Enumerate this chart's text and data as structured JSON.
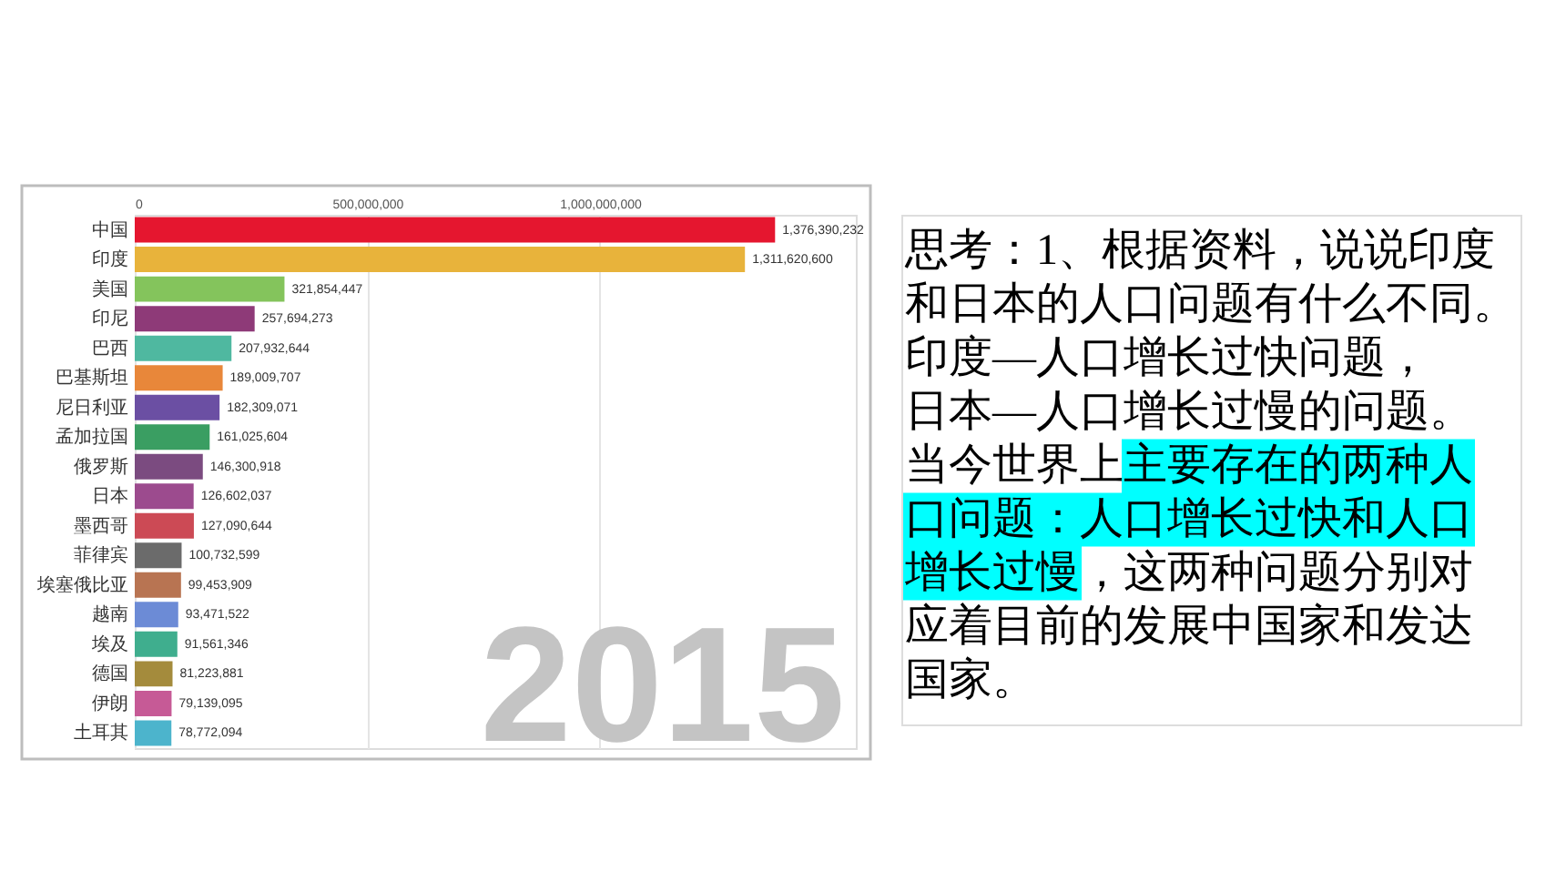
{
  "chart_data": [
    {
      "type": "bar",
      "orientation": "horizontal",
      "categories": [
        "中国",
        "印度",
        "美国",
        "印尼",
        "巴西",
        "巴基斯坦",
        "尼日利亚",
        "孟加拉国",
        "俄罗斯",
        "日本",
        "墨西哥",
        "菲律宾",
        "埃塞俄比亚",
        "越南",
        "埃及",
        "德国",
        "伊朗",
        "土耳其"
      ],
      "values": [
        1376390232,
        1311620600,
        321854447,
        257694273,
        207932644,
        189009707,
        182309071,
        161025604,
        146300918,
        126602037,
        127090644,
        100732599,
        99453909,
        93471522,
        91561346,
        81223881,
        79139095,
        78772094
      ],
      "value_labels": [
        "1,376,390,232",
        "1,311,620,600",
        "321,854,447",
        "257,694,273",
        "207,932,644",
        "189,009,707",
        "182,309,071",
        "161,025,604",
        "146,300,918",
        "126,602,037",
        "127,090,644",
        "100,732,599",
        "99,453,909",
        "93,471,522",
        "91,561,346",
        "81,223,881",
        "79,139,095",
        "78,772,094"
      ],
      "colors": [
        "#e5162f",
        "#e8b33b",
        "#84c45c",
        "#8e3a78",
        "#4fb8a0",
        "#e8873a",
        "#6b4fa3",
        "#3a9e62",
        "#7b4b80",
        "#9c4b8e",
        "#cc4a55",
        "#6b6b6b",
        "#b87452",
        "#6c8bd6",
        "#3fae8e",
        "#a48b3c",
        "#c65a96",
        "#4cb4cc"
      ],
      "xlim": [
        0,
        1550000000
      ],
      "xticks": [
        0,
        {
          "value": 500000000,
          "label": "500,000,000"
        },
        {
          "value": 1000000000,
          "label": "1,000,000,000"
        }
      ],
      "grid": "x",
      "annotations": [
        "2015"
      ]
    },
    {
      "type": "other",
      "annotations": [
        "思考：1、根据资料，说说印度和日本的人口问题有什么不同。",
        "印度—人口增长过快问题，",
        "日本—人口增长过慢的问题。",
        "当今世界上主要存在的两种人口问题：人口增长过快和人口增长过慢，这两种问题分别对应着目前的发展中国家和发达国家。"
      ]
    }
  ]
}
